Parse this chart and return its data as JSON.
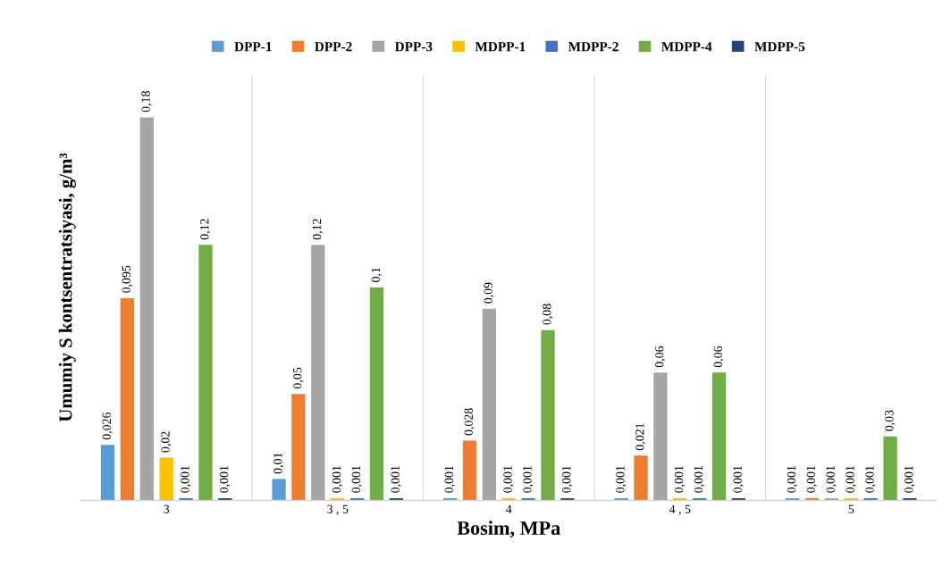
{
  "chart_data": {
    "type": "bar",
    "xlabel": "Bosim, MPa",
    "ylabel": "Umumiy S kontsentratsiyasi, g/m³",
    "categories": [
      "3",
      "3 , 5",
      "4",
      "4 , 5",
      "5"
    ],
    "ylim": [
      0,
      0.2
    ],
    "tick_labels": "x",
    "legend": "top",
    "grid": false,
    "series": [
      {
        "name": "DPP-1",
        "color": "#5b9bd5",
        "values": [
          0.026,
          0.01,
          0.001,
          0.001,
          0.001
        ],
        "value_labels": [
          "0,026",
          "0,01",
          "0,001",
          "0,001",
          "0,001"
        ]
      },
      {
        "name": "DPP-2",
        "color": "#ed7d31",
        "values": [
          0.095,
          0.05,
          0.028,
          0.021,
          0.001
        ],
        "value_labels": [
          "0,095",
          "0,05",
          "0,028",
          "0,021",
          "0,001"
        ]
      },
      {
        "name": "DPP-3",
        "color": "#a5a5a5",
        "values": [
          0.18,
          0.12,
          0.09,
          0.06,
          0.001
        ],
        "value_labels": [
          "0,18",
          "0,12",
          "0,09",
          "0,06",
          "0,001"
        ]
      },
      {
        "name": "MDPP-1",
        "color": "#ffc000",
        "values": [
          0.02,
          0.001,
          0.001,
          0.001,
          0.001
        ],
        "value_labels": [
          "0,02",
          "0,001",
          "0,001",
          "0,001",
          "0,001"
        ]
      },
      {
        "name": "MDPP-2",
        "color": "#4472c4",
        "values": [
          0.001,
          0.001,
          0.001,
          0.001,
          0.001
        ],
        "value_labels": [
          "0,001",
          "0,001",
          "0,001",
          "0,001",
          "0,001"
        ]
      },
      {
        "name": "MDPP-4",
        "color": "#70ad47",
        "values": [
          0.12,
          0.1,
          0.08,
          0.06,
          0.03
        ],
        "value_labels": [
          "0,12",
          "0,1",
          "0,08",
          "0,06",
          "0,03"
        ]
      },
      {
        "name": "MDPP-5",
        "color": "#264478",
        "values": [
          0.001,
          0.001,
          0.001,
          0.001,
          0.001
        ],
        "value_labels": [
          "0,001",
          "0,001",
          "0,001",
          "0,001",
          "0,001"
        ]
      }
    ]
  }
}
